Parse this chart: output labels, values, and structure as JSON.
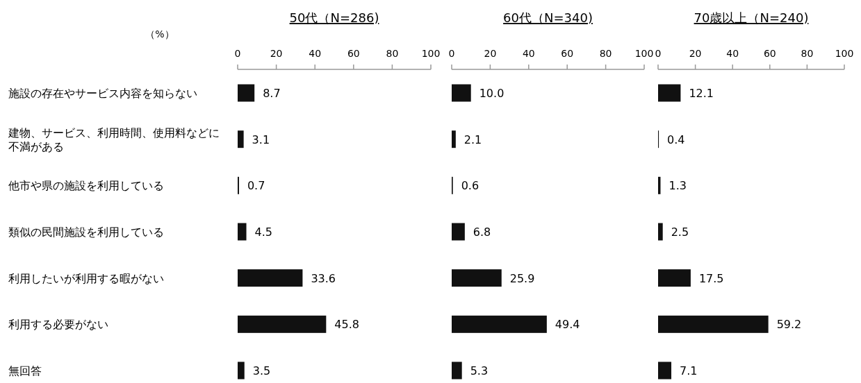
{
  "chart_data": [
    {
      "type": "bar",
      "orientation": "horizontal",
      "title": "50代（N=286)",
      "xlabel": "（%）",
      "categories": [
        "施設の存在やサービス内容を知らない",
        "建物、サービス、利用時間、使用料などに不満がある",
        "他市や県の施設を利用している",
        "類似の民間施設を利用している",
        "利用したいが利用する暇がない",
        "利用する必要がない",
        "無回答"
      ],
      "values": [
        8.7,
        3.1,
        0.7,
        4.5,
        33.6,
        45.8,
        3.5
      ],
      "value_labels": [
        "8.7",
        "3.1",
        "0.7",
        "4.5",
        "33.6",
        "45.8",
        "3.5"
      ],
      "color": "#111111",
      "xlim": [
        0,
        100
      ],
      "xticks": [
        0,
        20,
        40,
        60,
        80,
        100
      ]
    },
    {
      "type": "bar",
      "orientation": "horizontal",
      "title": "60代（N=340)",
      "categories": [
        null,
        null,
        null,
        null,
        null,
        null,
        null
      ],
      "values": [
        10.0,
        2.1,
        0.6,
        6.8,
        25.9,
        49.4,
        5.3
      ],
      "value_labels": [
        "10.0",
        "2.1",
        "0.6",
        "6.8",
        "25.9",
        "49.4",
        "5.3"
      ],
      "color": "#111111",
      "xlim": [
        0,
        100
      ],
      "xticks": [
        0,
        20,
        40,
        60,
        80,
        100
      ],
      "tick_labels": "x"
    },
    {
      "type": "bar",
      "orientation": "horizontal",
      "title": "70歳以上（N=240)",
      "categories": [
        null,
        null,
        null,
        null,
        null,
        null,
        null
      ],
      "values": [
        12.1,
        0.4,
        1.3,
        2.5,
        17.5,
        59.2,
        7.1
      ],
      "value_labels": [
        "12.1",
        "0.4",
        "1.3",
        "2.5",
        "17.5",
        "59.2",
        "7.1"
      ],
      "color": "#111111",
      "xlim": [
        0,
        100
      ],
      "xticks": [
        0,
        20,
        40,
        60,
        80,
        100
      ],
      "tick_labels": "x"
    }
  ]
}
